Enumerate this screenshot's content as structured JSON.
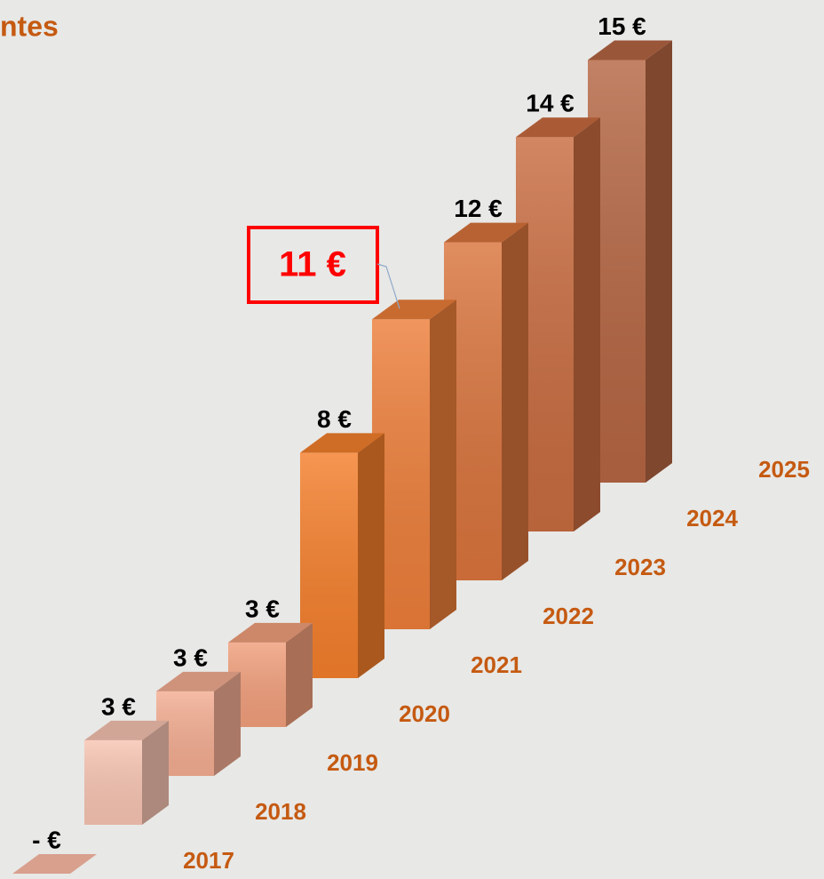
{
  "chart_data": {
    "type": "bar3d",
    "title": "ntes",
    "categories": [
      "2017",
      "2018",
      "2019",
      "2020",
      "2021",
      "2022",
      "2023",
      "2024",
      "2025"
    ],
    "values": [
      0,
      3,
      3,
      3,
      8,
      11,
      12,
      14,
      15
    ],
    "value_labels": [
      "-   €",
      "3 €",
      "3 €",
      "3 €",
      "8 €",
      "11 €",
      "12 €",
      "14 €",
      "15 €"
    ],
    "colors": [
      "#d9a08e",
      "#f7c4b2",
      "#f4ad92",
      "#f19f7c",
      "#f47f2c",
      "#ec7e3a",
      "#d9743d",
      "#c86c40",
      "#b56643"
    ]
  }
}
